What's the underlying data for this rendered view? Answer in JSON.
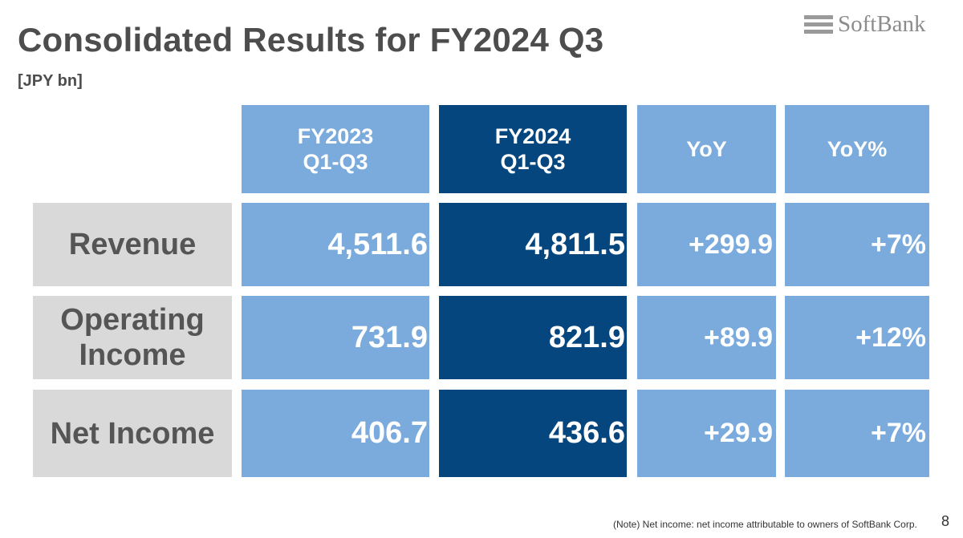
{
  "slide": {
    "title": "Consolidated Results for FY2024 Q3",
    "unit": "[JPY bn]",
    "brand": "SoftBank",
    "note": "(Note) Net income: net income attributable to owners of SoftBank Corp.",
    "page_number": "8"
  },
  "colors": {
    "light_cell": "#7aabdc",
    "dark_cell": "#05467f",
    "label_cell": "#d9d9d9",
    "title_text": "#4d4d4d"
  },
  "table": {
    "headers": [
      {
        "line1": "FY2023",
        "line2": "Q1-Q3"
      },
      {
        "line1": "FY2024",
        "line2": "Q1-Q3"
      },
      {
        "line1": "YoY"
      },
      {
        "line1": "YoY%"
      }
    ],
    "rows": [
      {
        "label_line1": "Revenue",
        "fy2023": "4,511.6",
        "fy2024": "4,811.5",
        "yoy": "+299.9",
        "yoy_pct": "+7%"
      },
      {
        "label_line1": "Operating",
        "label_line2": "Income",
        "fy2023": "731.9",
        "fy2024": "821.9",
        "yoy": "+89.9",
        "yoy_pct": "+12%"
      },
      {
        "label_line1": "Net Income",
        "fy2023": "406.7",
        "fy2024": "436.6",
        "yoy": "+29.9",
        "yoy_pct": "+7%"
      }
    ]
  }
}
